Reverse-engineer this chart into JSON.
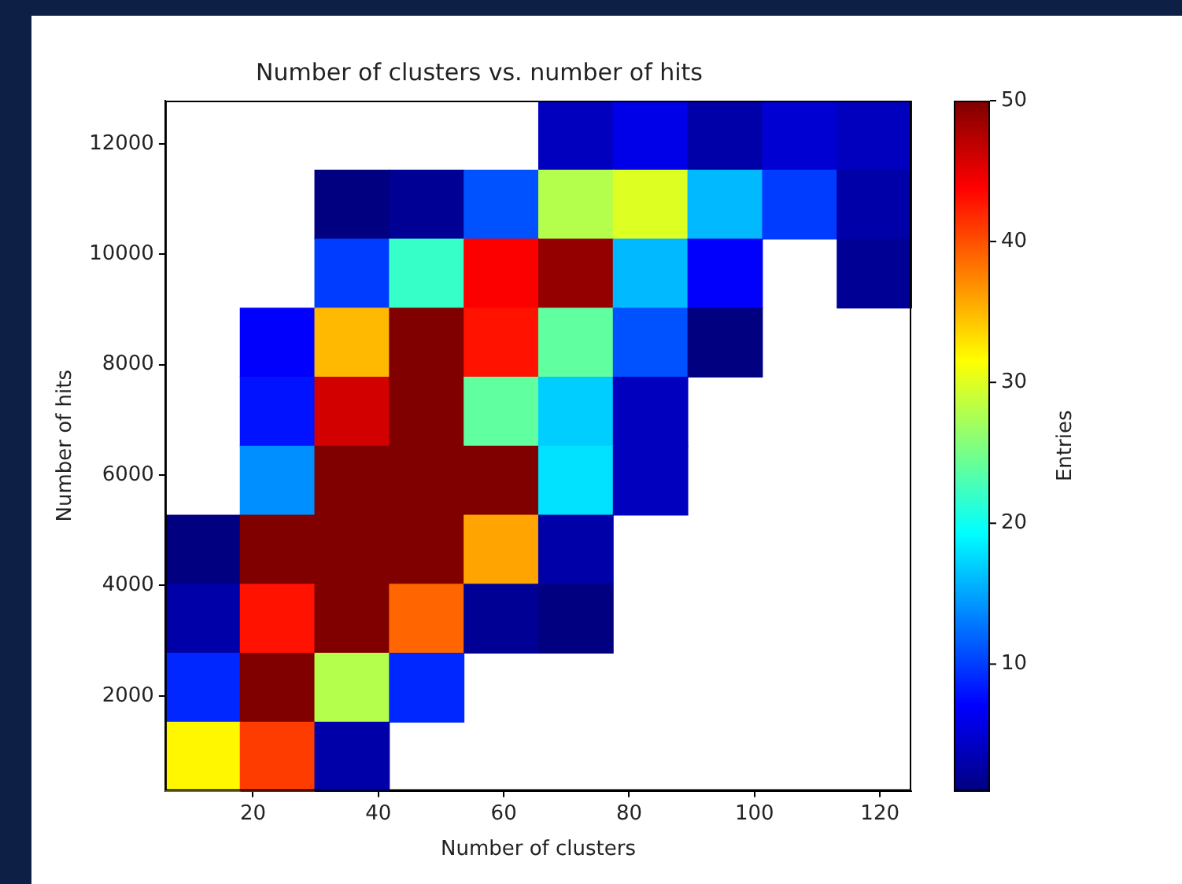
{
  "chart_data": {
    "type": "heatmap",
    "title": "Number of clusters vs. number of hits",
    "xlabel": "Number of clusters",
    "ylabel": "Number of hits",
    "clabel": "Entries",
    "x": [
      11.95,
      23.85,
      35.75,
      47.65,
      59.55,
      71.45,
      83.35,
      95.25,
      107.15,
      119.05
    ],
    "xlim": [
      6,
      125
    ],
    "xticks": [
      20,
      40,
      60,
      80,
      100,
      120
    ],
    "ylim": [
      280,
      12780
    ],
    "yticks": [
      2000,
      4000,
      6000,
      8000,
      10000,
      12000
    ],
    "cells": [
      [
        null,
        null,
        null,
        null,
        null,
        4,
        6,
        3,
        5,
        4
      ],
      [
        null,
        null,
        1,
        2,
        11,
        28,
        30,
        16,
        10,
        3
      ],
      [
        null,
        null,
        10,
        22,
        44,
        49,
        16,
        7,
        null,
        2
      ],
      [
        null,
        7,
        35,
        50,
        43,
        24,
        11,
        1,
        null,
        null
      ],
      [
        null,
        8,
        46,
        50,
        24,
        17,
        4,
        null,
        null,
        null
      ],
      [
        null,
        14,
        50,
        50,
        50,
        18,
        4,
        null,
        null,
        null
      ],
      [
        1,
        50,
        50,
        50,
        36,
        3,
        null,
        null,
        null,
        null
      ],
      [
        3,
        43,
        50,
        39,
        2,
        1,
        null,
        null,
        null,
        null
      ],
      [
        9,
        50,
        28,
        9,
        null,
        null,
        null,
        null,
        null,
        null
      ],
      [
        32,
        41,
        3,
        null,
        null,
        null,
        null,
        null,
        null,
        null
      ]
    ],
    "clim": [
      1,
      50
    ],
    "cticks": [
      10,
      20,
      30,
      40,
      50
    ]
  }
}
